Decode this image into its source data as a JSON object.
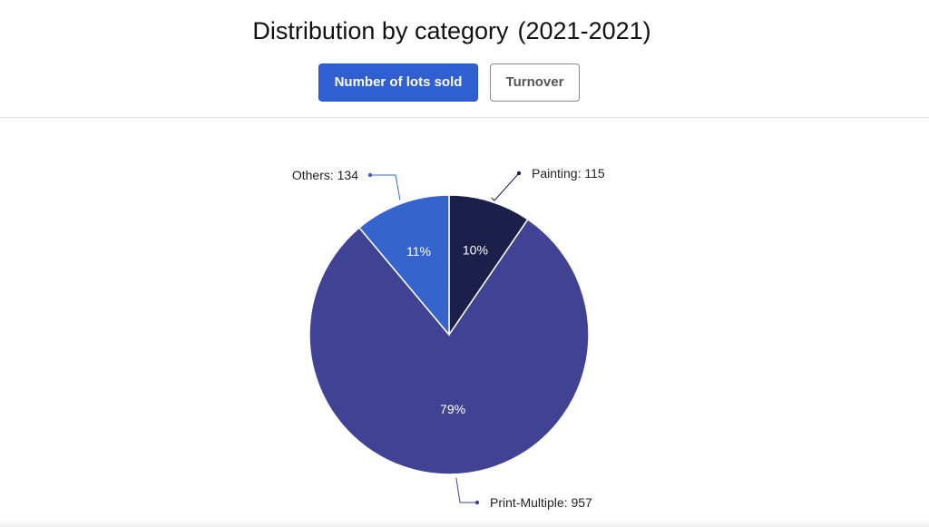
{
  "header": {
    "title": "Distribution by category",
    "years": "(2021-2021)"
  },
  "tabs": {
    "lots_label": "Number of lots sold",
    "turnover_label": "Turnover"
  },
  "colors": {
    "accent": "#2f5fd0",
    "painting": "#1b1f4a",
    "print_multiple": "#404294",
    "others": "#3565cc"
  },
  "chart_data": {
    "type": "pie",
    "title": "",
    "slices": [
      {
        "name": "Painting",
        "value": 115,
        "percent_label": "10%",
        "legend_label": "Painting: 115",
        "color": "#1b1f4a"
      },
      {
        "name": "Print-Multiple",
        "value": 957,
        "percent_label": "79%",
        "legend_label": "Print-Multiple: 957",
        "color": "#404294"
      },
      {
        "name": "Others",
        "value": 134,
        "percent_label": "11%",
        "legend_label": "Others: 134",
        "color": "#3565cc"
      }
    ]
  }
}
